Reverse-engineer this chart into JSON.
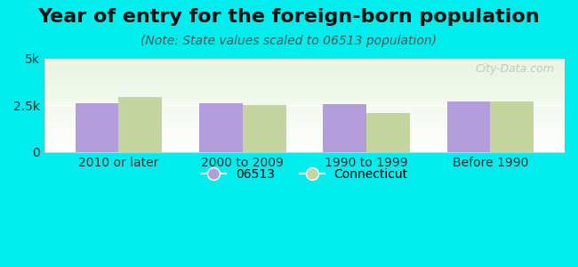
{
  "title": "Year of entry for the foreign-born population",
  "subtitle": "(Note: State values scaled to 06513 population)",
  "categories": [
    "2010 or later",
    "2000 to 2009",
    "1990 to 1999",
    "Before 1990"
  ],
  "series": {
    "06513": [
      2600,
      2620,
      2580,
      2720
    ],
    "Connecticut": [
      2950,
      2520,
      2080,
      2700
    ]
  },
  "bar_colors": {
    "06513": "#b39ddb",
    "Connecticut": "#c5d5a0"
  },
  "legend_labels": [
    "06513",
    "Connecticut"
  ],
  "ylim": [
    0,
    5000
  ],
  "yticks": [
    0,
    2500,
    5000
  ],
  "ytick_labels": [
    "0",
    "2.5k",
    "5k"
  ],
  "background_color": "#00eeee",
  "plot_bg_start": "#e8f5e0",
  "plot_bg_end": "#ffffff",
  "bar_width": 0.35,
  "watermark": "City-Data.com",
  "title_fontsize": 16,
  "subtitle_fontsize": 10,
  "tick_fontsize": 10,
  "legend_fontsize": 10
}
